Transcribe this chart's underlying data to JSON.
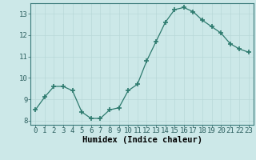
{
  "x": [
    0,
    1,
    2,
    3,
    4,
    5,
    6,
    7,
    8,
    9,
    10,
    11,
    12,
    13,
    14,
    15,
    16,
    17,
    18,
    19,
    20,
    21,
    22,
    23
  ],
  "y": [
    8.5,
    9.1,
    9.6,
    9.6,
    9.4,
    8.4,
    8.1,
    8.1,
    8.5,
    8.6,
    9.4,
    9.7,
    10.8,
    11.7,
    12.6,
    13.2,
    13.3,
    13.1,
    12.7,
    12.4,
    12.1,
    11.6,
    11.35,
    11.2
  ],
  "xlabel": "Humidex (Indice chaleur)",
  "ylim": [
    7.8,
    13.5
  ],
  "xlim": [
    -0.5,
    23.5
  ],
  "yticks": [
    8,
    9,
    10,
    11,
    12,
    13
  ],
  "xticks": [
    0,
    1,
    2,
    3,
    4,
    5,
    6,
    7,
    8,
    9,
    10,
    11,
    12,
    13,
    14,
    15,
    16,
    17,
    18,
    19,
    20,
    21,
    22,
    23
  ],
  "line_color": "#2d7a6e",
  "marker_color": "#2d7a6e",
  "bg_color": "#cce8e8",
  "grid_color": "#b8d8d8",
  "tick_label_fontsize": 6.5,
  "xlabel_fontsize": 7.5
}
